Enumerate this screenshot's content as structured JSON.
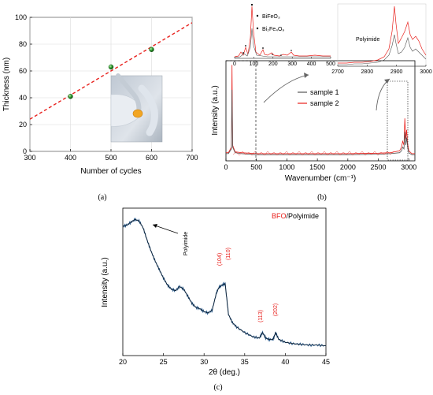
{
  "panel_labels": {
    "a": "(a)",
    "b": "(b)",
    "c": "(c)"
  },
  "chart_data": [
    {
      "id": "a",
      "type": "scatter",
      "xlabel": "Number of cycles",
      "ylabel": "Thickness (nm)",
      "xlim": [
        300,
        700
      ],
      "ylim": [
        0,
        100
      ],
      "xticks": [
        "300",
        "400",
        "500",
        "600",
        "700"
      ],
      "yticks": [
        "0",
        "20",
        "40",
        "60",
        "80",
        "100"
      ],
      "points": [
        {
          "x": 400,
          "y": 41
        },
        {
          "x": 500,
          "y": 63
        },
        {
          "x": 600,
          "y": 76
        }
      ],
      "fit_line": {
        "x": [
          300,
          700
        ],
        "y": [
          24,
          96
        ],
        "style": "dashed",
        "color": "#e8201c"
      },
      "marker_color": "#1e8a1e",
      "inset": "photo of sample film held between gloved fingers"
    },
    {
      "id": "b",
      "type": "line",
      "xlabel": "Wavenumber (cm⁻¹)",
      "ylabel": "Intensity (a.u.)",
      "xlim": [
        0,
        3100
      ],
      "xticks": [
        "0",
        "500",
        "1000",
        "1500",
        "2000",
        "2500",
        "3000"
      ],
      "legend": {
        "position": "right",
        "entries": [
          "sample 1",
          "sample 2"
        ]
      },
      "series": [
        {
          "name": "sample 1",
          "color": "#555555",
          "x": [
            0,
            40,
            90,
            100,
            110,
            150,
            250,
            500,
            1000,
            1500,
            2000,
            2500,
            2700,
            2850,
            2880,
            2900,
            2920,
            2935,
            2950,
            2965,
            2980,
            3000,
            3050,
            3100
          ],
          "y": [
            0.05,
            0.05,
            0.1,
            0.72,
            0.12,
            0.06,
            0.05,
            0.04,
            0.04,
            0.04,
            0.04,
            0.045,
            0.05,
            0.06,
            0.08,
            0.12,
            0.1,
            0.28,
            0.14,
            0.22,
            0.12,
            0.06,
            0.04,
            0.04
          ]
        },
        {
          "name": "sample 2",
          "color": "#e8201c",
          "x": [
            0,
            40,
            90,
            100,
            110,
            150,
            250,
            500,
            1000,
            1500,
            2000,
            2500,
            2700,
            2850,
            2880,
            2900,
            2920,
            2935,
            2950,
            2965,
            2980,
            3000,
            3050,
            3100
          ],
          "y": [
            0.06,
            0.06,
            0.12,
            0.98,
            0.14,
            0.07,
            0.06,
            0.05,
            0.05,
            0.05,
            0.05,
            0.055,
            0.06,
            0.08,
            0.12,
            0.18,
            0.14,
            0.42,
            0.2,
            0.3,
            0.16,
            0.08,
            0.05,
            0.05
          ]
        }
      ],
      "insets": [
        {
          "xlim": [
            0,
            500
          ],
          "xticks": [
            "0",
            "100",
            "200",
            "300",
            "400",
            "500"
          ],
          "legend": [
            "BiFeO₃",
            "Bi₂Fe₄O₉"
          ]
        },
        {
          "label": "Polyimide",
          "xlim": [
            2700,
            3000
          ],
          "xticks": [
            "2700",
            "2800",
            "2900",
            "3000"
          ]
        }
      ]
    },
    {
      "id": "c",
      "type": "line",
      "title_parts": [
        {
          "text": "BFO",
          "color": "#e8201c"
        },
        {
          "text": "/Polyimide",
          "color": "#000000"
        }
      ],
      "xlabel": "2θ (deg.)",
      "ylabel": "Intensity (a.u.)",
      "xlim": [
        20,
        45
      ],
      "xticks": [
        "20",
        "25",
        "30",
        "35",
        "40",
        "45"
      ],
      "series": [
        {
          "name": "",
          "color": "#2a5b8c",
          "x": [
            20,
            20.5,
            21,
            21.5,
            22,
            22.5,
            23,
            23.5,
            24,
            24.5,
            25,
            25.5,
            26,
            26.5,
            27,
            27.5,
            28,
            28.5,
            29,
            29.5,
            30,
            30.5,
            31,
            31.5,
            31.8,
            32.2,
            32.6,
            33,
            33.5,
            34,
            35,
            36,
            36.8,
            37.2,
            37.6,
            38,
            38.5,
            38.8,
            39.2,
            40,
            41,
            42,
            43,
            44,
            45
          ],
          "y": [
            0.88,
            0.89,
            0.91,
            0.93,
            0.92,
            0.87,
            0.78,
            0.7,
            0.63,
            0.57,
            0.51,
            0.46,
            0.43,
            0.42,
            0.45,
            0.43,
            0.38,
            0.33,
            0.3,
            0.29,
            0.27,
            0.26,
            0.28,
            0.4,
            0.44,
            0.46,
            0.47,
            0.25,
            0.19,
            0.16,
            0.12,
            0.09,
            0.08,
            0.12,
            0.08,
            0.07,
            0.07,
            0.12,
            0.07,
            0.05,
            0.04,
            0.035,
            0.03,
            0.03,
            0.025
          ]
        }
      ],
      "annotations": [
        {
          "text": "Polyimide",
          "at_x": 26.5
        },
        {
          "text": "(104)",
          "at_x": 31.6
        },
        {
          "text": "(110)",
          "at_x": 32.8
        },
        {
          "text": "(113)",
          "at_x": 37.1
        },
        {
          "text": "(202)",
          "at_x": 38.8
        }
      ]
    }
  ]
}
